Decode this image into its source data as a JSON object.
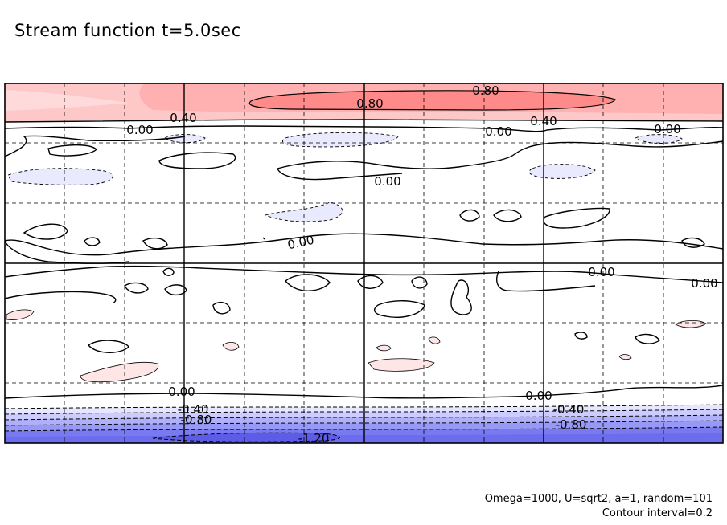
{
  "chart_data": {
    "type": "contour",
    "title": "Stream function t=5.0sec",
    "footer_line1": "Omega=1000, U=sqrt2, a=1, random=101",
    "footer_line2": "Contour interval=0.2",
    "contour_interval": 0.2,
    "grid": true,
    "colors": {
      "positive": "#ff8a8a",
      "negative": "#7373f0",
      "zero_line": "#000000"
    },
    "contour_labels": [
      {
        "text": "0.80",
        "level": 0.8
      },
      {
        "text": "0.80",
        "level": 0.8
      },
      {
        "text": "0.40",
        "level": 0.4
      },
      {
        "text": "0.40",
        "level": 0.4
      },
      {
        "text": "0.00",
        "level": 0
      },
      {
        "text": "0.00",
        "level": 0
      },
      {
        "text": "0.00",
        "level": 0
      },
      {
        "text": "0.00",
        "level": 0
      },
      {
        "text": "0.00",
        "level": 0
      },
      {
        "text": "0.00",
        "level": 0
      },
      {
        "text": "0.00",
        "level": 0
      },
      {
        "text": "0.00",
        "level": 0
      },
      {
        "text": "0.00",
        "level": 0
      },
      {
        "text": "-0.40",
        "level": -0.4
      },
      {
        "text": "-0.40",
        "level": -0.4
      },
      {
        "text": "-0.80",
        "level": -0.8
      },
      {
        "text": "-0.80",
        "level": -0.8
      },
      {
        "text": "-1.20",
        "level": -1.2
      }
    ]
  }
}
